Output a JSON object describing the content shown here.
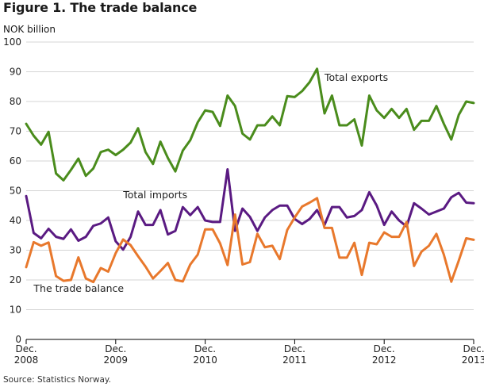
{
  "title": "Figure 1. The trade balance",
  "source": "Source: Statistics Norway.",
  "chart_data": {
    "type": "line",
    "title": "Figure 1. The trade balance",
    "ylabel": "NOK billion",
    "xlabel": "",
    "ylim": [
      0,
      100
    ],
    "yticks": [
      0,
      10,
      20,
      30,
      40,
      50,
      60,
      70,
      80,
      90,
      100
    ],
    "grid": true,
    "x_tick_labels": [
      {
        "month": "Dec.",
        "year": "2008",
        "index": 0
      },
      {
        "month": "Dec.",
        "year": "2009",
        "index": 12
      },
      {
        "month": "Dec.",
        "year": "2010",
        "index": 24
      },
      {
        "month": "Dec.",
        "year": "2011",
        "index": 36
      },
      {
        "month": "Dec.",
        "year": "2012",
        "index": 48
      },
      {
        "month": "Dec.",
        "year": "2013",
        "index": 60
      }
    ],
    "series": [
      {
        "name": "Total exports",
        "color": "#4a8c1c",
        "values": [
          72.5,
          68.5,
          65.5,
          69.8,
          55.8,
          53.5,
          57,
          60.8,
          55,
          57.5,
          63,
          63.8,
          62,
          63.8,
          66.2,
          71,
          63,
          59,
          66.5,
          61,
          56.5,
          63.5,
          67,
          73,
          77,
          76.5,
          71.8,
          82,
          78.5,
          69.2,
          67.2,
          72,
          72,
          75,
          72,
          81.8,
          81.5,
          83.5,
          86.5,
          91,
          76,
          82,
          72,
          72,
          74,
          65.2,
          82,
          77,
          74.5,
          77.5,
          74.5,
          77.5,
          70.5,
          73.5,
          73.5,
          78.5,
          72.5,
          67.2,
          75.5,
          80,
          79.5
        ]
      },
      {
        "name": "Total imports",
        "color": "#5a1a82",
        "values": [
          48.2,
          35.8,
          34,
          37.2,
          34.5,
          33.8,
          37,
          33.2,
          34.5,
          38.2,
          39,
          41,
          33,
          30.2,
          34.5,
          43,
          38.5,
          38.5,
          43.5,
          35.3,
          36.5,
          44.5,
          41.8,
          44.5,
          40,
          39.5,
          39.5,
          57.2,
          36.5,
          44,
          41.2,
          36.5,
          41,
          43.5,
          45,
          45,
          40.5,
          38.8,
          40.5,
          43.5,
          38.5,
          44.5,
          44.5,
          41,
          41.5,
          43.5,
          49.5,
          45,
          38.5,
          43,
          40,
          38,
          45.8,
          44,
          42,
          43,
          44,
          47.8,
          49.3,
          46,
          45.8
        ]
      },
      {
        "name": "The trade balance",
        "color": "#e8782c",
        "values": [
          24.3,
          32.7,
          31.5,
          32.6,
          21.3,
          19.7,
          20,
          27.6,
          20.5,
          19.3,
          24,
          22.8,
          29,
          33.6,
          31.7,
          28,
          24.5,
          20.5,
          23,
          25.7,
          20,
          19.5,
          25.2,
          28.5,
          37,
          37,
          32.3,
          25,
          42,
          25.2,
          26,
          35.5,
          31,
          31.5,
          27,
          36.8,
          41,
          44.7,
          46,
          47.5,
          37.5,
          37.5,
          27.5,
          27.5,
          32.5,
          21.7,
          32.5,
          32,
          36,
          34.5,
          34.5,
          39.5,
          24.7,
          29.5,
          31.5,
          35.5,
          28.5,
          19.4,
          26.5,
          34,
          33.5
        ]
      }
    ],
    "annotations": [
      {
        "text": "Total exports",
        "series": "Total exports",
        "at_index": 40,
        "at_value": 87
      },
      {
        "text": "Total imports",
        "series": "Total imports",
        "at_index": 13,
        "at_value": 47.5
      },
      {
        "text": "The trade balance",
        "series": "The trade balance",
        "at_index": 1,
        "at_value": 16
      }
    ]
  }
}
